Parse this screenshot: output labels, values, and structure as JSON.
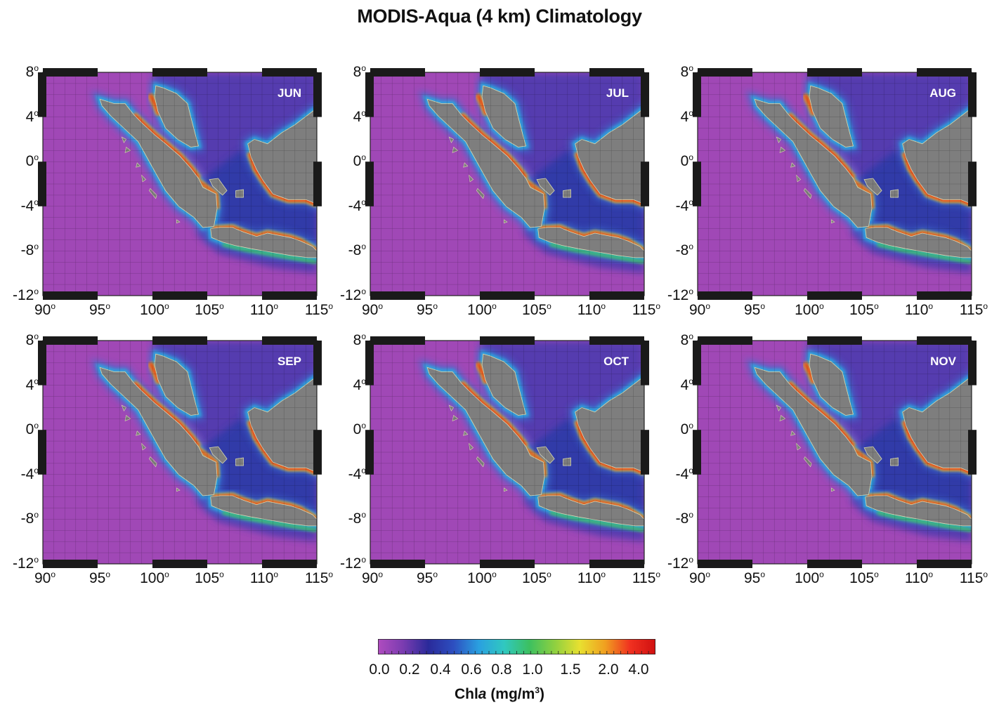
{
  "title": "MODIS-Aqua (4 km) Climatology",
  "panels": [
    {
      "month": "JUN"
    },
    {
      "month": "JUL"
    },
    {
      "month": "AUG"
    },
    {
      "month": "SEP"
    },
    {
      "month": "OCT"
    },
    {
      "month": "NOV"
    }
  ],
  "lat_ticks": [
    "8",
    "4",
    "0",
    "-4",
    "-8",
    "-12"
  ],
  "lon_ticks": [
    "90",
    "95",
    "100",
    "105",
    "110",
    "115"
  ],
  "degree_sign": "o",
  "colorbar": {
    "ticks": [
      "0.0",
      "0.2",
      "0.4",
      "0.6",
      "0.8",
      "1.0",
      "1.5",
      "2.0",
      "4.0"
    ],
    "label_main": "Chl",
    "label_italic": "a",
    "label_units": " (mg/m",
    "label_sup": "3",
    "label_close": ")",
    "colors": [
      "#b04cbf",
      "#7a3cb0",
      "#2a2a9a",
      "#2d4fc0",
      "#2aa0e0",
      "#30c8c0",
      "#3cc060",
      "#8ed040",
      "#e8e030",
      "#f0a020",
      "#f03020",
      "#d01010"
    ]
  },
  "colors": {
    "ocean_deep": "#9a44b4",
    "ocean_mid": "#3a3aa8",
    "coastal_high": "#e83020",
    "land": "#7e7e7e"
  }
}
